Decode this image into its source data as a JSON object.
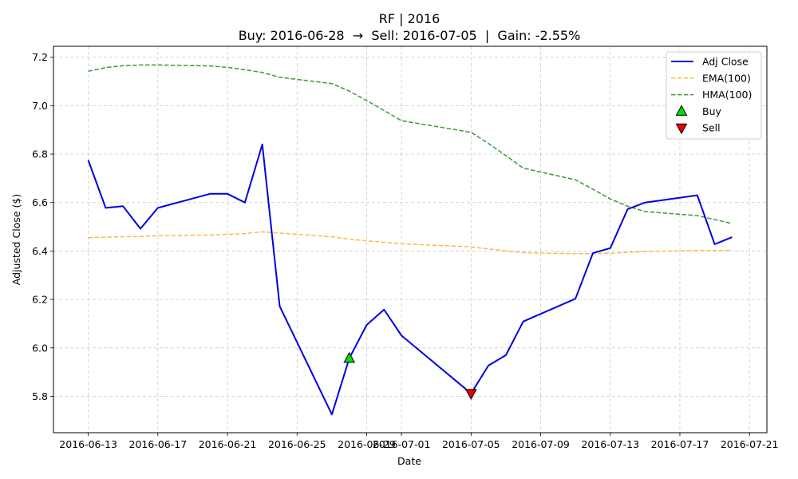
{
  "chart_data": {
    "type": "line",
    "title": "RF | 2016",
    "subtitle": "Buy: 2016-06-28  →  Sell: 2016-07-05  |  Gain: -2.55%",
    "xlabel": "Date",
    "ylabel": "Adjusted Close ($)",
    "grid": true,
    "legend_position": "top-right",
    "x_range": [
      "2016-06-11",
      "2016-07-22"
    ],
    "ylim": [
      5.65,
      7.245
    ],
    "x_ticks": [
      "2016-06-13",
      "2016-06-17",
      "2016-06-21",
      "2016-06-25",
      "2016-06-29",
      "2016-07-01",
      "2016-07-05",
      "2016-07-09",
      "2016-07-13",
      "2016-07-17",
      "2016-07-21"
    ],
    "x_tick_labels": [
      "2016-06-13",
      "2016-06-17",
      "2016-06-21",
      "2016-06-25",
      "2016-06-29",
      "2016-07-01",
      "2016-07-05",
      "2016-07-09",
      "2016-07-13",
      "2016-07-17",
      "2016-07-21"
    ],
    "y_ticks": [
      5.8,
      6.0,
      6.2,
      6.4,
      6.6,
      6.8,
      7.0,
      7.2
    ],
    "y_tick_labels": [
      "5.8",
      "6.0",
      "6.2",
      "6.4",
      "6.6",
      "6.8",
      "7.0",
      "7.2"
    ],
    "series": [
      {
        "name": "Adj Close",
        "color": "#0000e0",
        "style": "solid",
        "points": [
          [
            "2016-06-13",
            6.775
          ],
          [
            "2016-06-14",
            6.578
          ],
          [
            "2016-06-15",
            6.585
          ],
          [
            "2016-06-16",
            6.492
          ],
          [
            "2016-06-17",
            6.578
          ],
          [
            "2016-06-20",
            6.636
          ],
          [
            "2016-06-21",
            6.636
          ],
          [
            "2016-06-22",
            6.6
          ],
          [
            "2016-06-23",
            6.84
          ],
          [
            "2016-06-24",
            6.172
          ],
          [
            "2016-06-27",
            5.725
          ],
          [
            "2016-06-28",
            5.957
          ],
          [
            "2016-06-29",
            6.095
          ],
          [
            "2016-06-30",
            6.158
          ],
          [
            "2016-07-01",
            6.051
          ],
          [
            "2016-07-05",
            5.812
          ],
          [
            "2016-07-06",
            5.927
          ],
          [
            "2016-07-07",
            5.97
          ],
          [
            "2016-07-08",
            6.109
          ],
          [
            "2016-07-11",
            6.203
          ],
          [
            "2016-07-12",
            6.391
          ],
          [
            "2016-07-13",
            6.412
          ],
          [
            "2016-07-14",
            6.573
          ],
          [
            "2016-07-15",
            6.6
          ],
          [
            "2016-07-18",
            6.63
          ],
          [
            "2016-07-19",
            6.428
          ],
          [
            "2016-07-20",
            6.457
          ]
        ]
      },
      {
        "name": "EMA(100)",
        "color": "#ffb84d",
        "style": "dashed",
        "points": [
          [
            "2016-06-13",
            6.455
          ],
          [
            "2016-06-14",
            6.457
          ],
          [
            "2016-06-15",
            6.459
          ],
          [
            "2016-06-16",
            6.46
          ],
          [
            "2016-06-17",
            6.463
          ],
          [
            "2016-06-20",
            6.466
          ],
          [
            "2016-06-21",
            6.469
          ],
          [
            "2016-06-22",
            6.472
          ],
          [
            "2016-06-23",
            6.479
          ],
          [
            "2016-06-24",
            6.474
          ],
          [
            "2016-06-27",
            6.459
          ],
          [
            "2016-06-28",
            6.449
          ],
          [
            "2016-06-29",
            6.442
          ],
          [
            "2016-06-30",
            6.436
          ],
          [
            "2016-07-01",
            6.43
          ],
          [
            "2016-07-05",
            6.417
          ],
          [
            "2016-07-06",
            6.409
          ],
          [
            "2016-07-07",
            6.4
          ],
          [
            "2016-07-08",
            6.393
          ],
          [
            "2016-07-11",
            6.389
          ],
          [
            "2016-07-12",
            6.389
          ],
          [
            "2016-07-13",
            6.391
          ],
          [
            "2016-07-14",
            6.394
          ],
          [
            "2016-07-15",
            6.398
          ],
          [
            "2016-07-18",
            6.402
          ],
          [
            "2016-07-19",
            6.402
          ],
          [
            "2016-07-20",
            6.403
          ]
        ]
      },
      {
        "name": "HMA(100)",
        "color": "#3a9a3a",
        "style": "dashed",
        "points": [
          [
            "2016-06-13",
            7.142
          ],
          [
            "2016-06-14",
            7.157
          ],
          [
            "2016-06-15",
            7.165
          ],
          [
            "2016-06-16",
            7.168
          ],
          [
            "2016-06-17",
            7.168
          ],
          [
            "2016-06-20",
            7.164
          ],
          [
            "2016-06-21",
            7.158
          ],
          [
            "2016-06-22",
            7.148
          ],
          [
            "2016-06-23",
            7.137
          ],
          [
            "2016-06-24",
            7.117
          ],
          [
            "2016-06-27",
            7.091
          ],
          [
            "2016-06-28",
            7.06
          ],
          [
            "2016-06-29",
            7.021
          ],
          [
            "2016-06-30",
            6.98
          ],
          [
            "2016-07-01",
            6.938
          ],
          [
            "2016-07-05",
            6.89
          ],
          [
            "2016-07-06",
            6.844
          ],
          [
            "2016-07-07",
            6.794
          ],
          [
            "2016-07-08",
            6.742
          ],
          [
            "2016-07-11",
            6.694
          ],
          [
            "2016-07-12",
            6.655
          ],
          [
            "2016-07-13",
            6.615
          ],
          [
            "2016-07-14",
            6.585
          ],
          [
            "2016-07-15",
            6.563
          ],
          [
            "2016-07-18",
            6.546
          ],
          [
            "2016-07-19",
            6.53
          ],
          [
            "2016-07-20",
            6.513
          ]
        ]
      }
    ],
    "markers": [
      {
        "name": "Buy",
        "date": "2016-06-28",
        "value": 5.957,
        "shape": "triangle-up",
        "color": "#00dd00"
      },
      {
        "name": "Sell",
        "date": "2016-07-05",
        "value": 5.812,
        "shape": "triangle-down",
        "color": "#ee0000"
      }
    ]
  }
}
